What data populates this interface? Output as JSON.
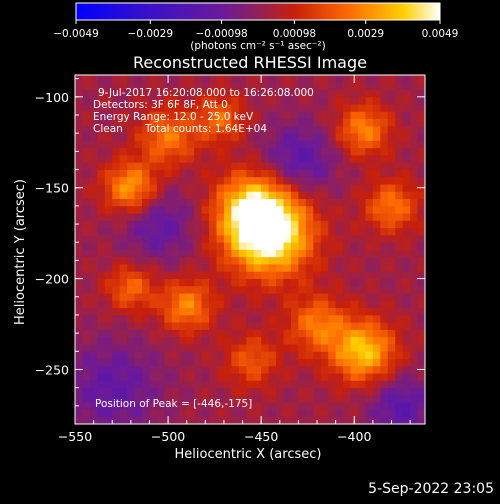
{
  "chart_data": {
    "type": "heatmap",
    "title": "Reconstructed RHESSI Image",
    "xlabel": "Heliocentric X (arcsec)",
    "ylabel": "Heliocentric Y (arcsec)",
    "xlim": [
      -550,
      -362
    ],
    "ylim": [
      -280,
      -88
    ],
    "x_ticks": [
      -550,
      -500,
      -450,
      -400
    ],
    "y_ticks": [
      -250,
      -200,
      -150,
      -100
    ],
    "colorbar": {
      "tick_labels": [
        "-0.0049",
        "-0.0029",
        "-0.00098",
        "0.00098",
        "0.0029",
        "0.0049"
      ],
      "range": [
        -0.0049,
        0.0049
      ],
      "unit_label": "(photons cm⁻² s⁻¹ asec⁻²)"
    },
    "annotations": {
      "time_range": "9-Jul-2017 16:20:08.000 to 16:26:08.000",
      "detectors": "Detectors: 3F 6F 8F, Att 0",
      "energy_range": "Energy Range: 12.0 - 25.0 keV",
      "algorithm": "Clean",
      "total_counts": "Total counts: 1.64E+04",
      "peak_position": "Position of Peak = [-446,-175]"
    },
    "sources": [
      {
        "x": -446,
        "y": -175,
        "amplitude": 1.0,
        "sigma": 16
      },
      {
        "x": -455,
        "y": -160,
        "amplitude": 0.55,
        "sigma": 14
      },
      {
        "x": -520,
        "y": -150,
        "amplitude": 0.6,
        "sigma": 10
      },
      {
        "x": -500,
        "y": -122,
        "amplitude": 0.45,
        "sigma": 11
      },
      {
        "x": -472,
        "y": -112,
        "amplitude": 0.4,
        "sigma": 9
      },
      {
        "x": -395,
        "y": -118,
        "amplitude": 0.5,
        "sigma": 10
      },
      {
        "x": -380,
        "y": -160,
        "amplitude": 0.45,
        "sigma": 10
      },
      {
        "x": -395,
        "y": -240,
        "amplitude": 0.7,
        "sigma": 12
      },
      {
        "x": -420,
        "y": -225,
        "amplitude": 0.45,
        "sigma": 11
      },
      {
        "x": -490,
        "y": -215,
        "amplitude": 0.5,
        "sigma": 10
      },
      {
        "x": -520,
        "y": -205,
        "amplitude": 0.4,
        "sigma": 9
      },
      {
        "x": -455,
        "y": -245,
        "amplitude": 0.35,
        "sigma": 10
      },
      {
        "x": -530,
        "y": -260,
        "amplitude": -0.3,
        "sigma": 18
      },
      {
        "x": -430,
        "y": -135,
        "amplitude": -0.35,
        "sigma": 14
      },
      {
        "x": -505,
        "y": -170,
        "amplitude": -0.3,
        "sigma": 14
      },
      {
        "x": -375,
        "y": -270,
        "amplitude": -0.35,
        "sigma": 12
      }
    ]
  },
  "footer": {
    "timestamp": "5-Sep-2022 23:05"
  }
}
